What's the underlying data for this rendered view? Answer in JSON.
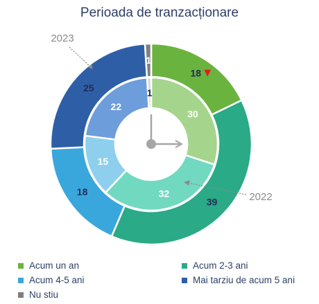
{
  "chart_data": {
    "type": "pie",
    "title": "Perioada de tranzacționare",
    "categories": [
      "Acum un an",
      "Acum 2-3 ani",
      "Acum 4-5 ani",
      "Mai tarziu de acum 5 ani",
      "Nu stiu"
    ],
    "series": [
      {
        "name": "2023",
        "values": [
          18,
          39,
          18,
          25,
          1
        ],
        "colors": [
          "#6bb33f",
          "#2aaa86",
          "#3aa7dc",
          "#2e5fa6",
          "#7f7f7f"
        ]
      },
      {
        "name": "2022",
        "values": [
          30,
          32,
          15,
          22,
          1
        ],
        "colors": [
          "#a5d58c",
          "#72d9c1",
          "#8ecfee",
          "#6d9ddb",
          "#d9d9d9"
        ]
      }
    ],
    "annotations": [
      {
        "text": "▼",
        "series": "2023",
        "category": "Acum un an",
        "color": "#e02020"
      }
    ],
    "legend": "bottom"
  },
  "legend_items": [
    {
      "label": "Acum un an",
      "color": "#6bb33f"
    },
    {
      "label": "Acum 2-3 ani",
      "color": "#2aaa86"
    },
    {
      "label": "Acum 4-5 ani",
      "color": "#3aa7dc"
    },
    {
      "label": "Mai tarziu de acum 5 ani",
      "color": "#2e5fa6"
    },
    {
      "label": "Nu stiu",
      "color": "#7f7f7f"
    }
  ],
  "colors": {
    "clock": "#a6a6a6",
    "callout": "#8a8a8a",
    "dark_label": "#1f2e55",
    "light_label": "#ffffff"
  }
}
